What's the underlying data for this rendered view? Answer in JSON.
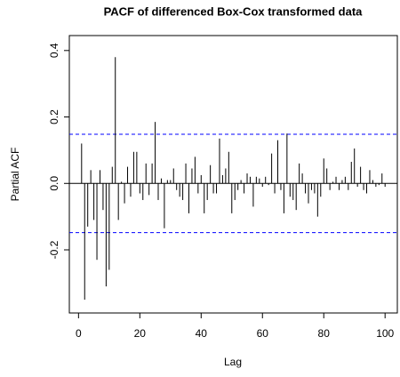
{
  "chart_data": {
    "type": "pacf",
    "title": "PACF of differenced Box-Cox transformed data",
    "xlabel": "Lag",
    "ylabel": "Partial ACF",
    "x": [
      1,
      2,
      3,
      4,
      5,
      6,
      7,
      8,
      9,
      10,
      11,
      12,
      13,
      14,
      15,
      16,
      17,
      18,
      19,
      20,
      21,
      22,
      23,
      24,
      25,
      26,
      27,
      28,
      29,
      30,
      31,
      32,
      33,
      34,
      35,
      36,
      37,
      38,
      39,
      40,
      41,
      42,
      43,
      44,
      45,
      46,
      47,
      48,
      49,
      50,
      51,
      52,
      53,
      54,
      55,
      56,
      57,
      58,
      59,
      60,
      61,
      62,
      63,
      64,
      65,
      66,
      67,
      68,
      69,
      70,
      71,
      72,
      73,
      74,
      75,
      76,
      77,
      78,
      79,
      80,
      81,
      82,
      83,
      84,
      85,
      86,
      87,
      88,
      89,
      90,
      91,
      92,
      93,
      94,
      95,
      96,
      97,
      98,
      99,
      100
    ],
    "values": [
      0.12,
      -0.35,
      -0.13,
      0.04,
      -0.11,
      -0.23,
      0.04,
      -0.08,
      -0.31,
      -0.26,
      0.05,
      0.38,
      -0.11,
      0.005,
      -0.06,
      0.05,
      -0.04,
      0.095,
      0.095,
      -0.03,
      -0.05,
      0.06,
      -0.035,
      0.06,
      0.185,
      -0.05,
      0.015,
      -0.135,
      0.01,
      0.01,
      0.045,
      -0.02,
      -0.04,
      -0.05,
      0.06,
      -0.09,
      0.045,
      0.08,
      -0.03,
      0.025,
      -0.09,
      -0.05,
      0.055,
      -0.03,
      -0.03,
      0.135,
      0.025,
      0.045,
      0.095,
      -0.09,
      -0.05,
      -0.02,
      0.01,
      -0.03,
      0.03,
      0.02,
      -0.07,
      0.02,
      0.015,
      -0.01,
      0.02,
      -0.005,
      0.09,
      -0.03,
      0.13,
      -0.02,
      -0.09,
      0.15,
      -0.04,
      -0.05,
      -0.08,
      0.06,
      0.03,
      -0.03,
      -0.06,
      -0.02,
      -0.03,
      -0.1,
      -0.04,
      0.075,
      0.045,
      -0.02,
      0.005,
      0.02,
      -0.02,
      0.01,
      0.02,
      -0.02,
      0.065,
      0.105,
      -0.01,
      0.05,
      -0.02,
      -0.03,
      0.04,
      0.01,
      -0.01,
      -0.005,
      0.03,
      -0.01
    ],
    "color": "#000000",
    "hlines": [
      0.148,
      -0.148
    ],
    "hline_color": "#0000ff",
    "xlim": [
      -3,
      104
    ],
    "xticks": [
      0,
      20,
      40,
      60,
      80,
      100
    ],
    "ylim": [
      -0.39,
      0.445
    ],
    "yticks": [
      -0.2,
      {
        "value": 0,
        "label": "0.0"
      },
      0.2,
      0.4
    ]
  }
}
